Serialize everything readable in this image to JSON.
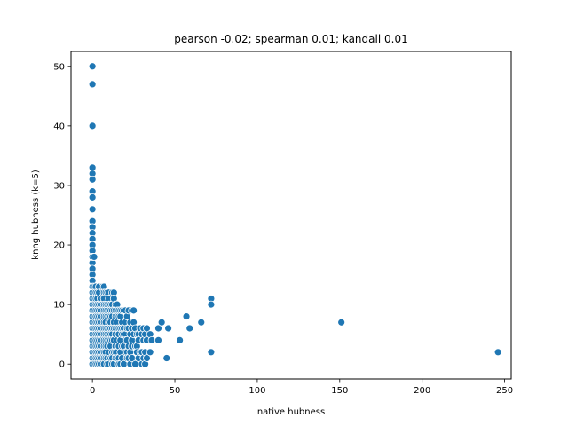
{
  "chart_data": {
    "type": "scatter",
    "title": "pearson -0.02; spearman 0.01; kandall 0.01",
    "xlabel": "native hubness",
    "ylabel": "knng hubness (k=5)",
    "xlim": [
      -13,
      254
    ],
    "ylim": [
      -2.5,
      52.5
    ],
    "xticks": [
      0,
      50,
      100,
      150,
      200,
      250
    ],
    "yticks": [
      0,
      10,
      20,
      30,
      40,
      50
    ],
    "grid": false,
    "legend": "none",
    "marker_color": "#1f77b4",
    "marker_edge_color": "#ffffff",
    "series": [
      {
        "x": [
          0,
          0,
          0,
          0,
          0,
          0,
          0,
          0,
          0,
          0,
          0,
          0,
          0,
          0,
          0,
          0,
          0,
          0,
          0,
          0,
          0,
          0,
          0,
          0,
          0,
          0,
          0,
          0,
          0,
          0,
          0,
          0,
          0,
          0,
          0,
          0,
          0,
          0,
          0,
          0,
          0,
          0,
          0,
          0,
          0,
          0,
          0,
          0,
          0,
          0,
          0,
          0,
          1,
          1,
          1,
          1,
          1,
          1,
          1,
          1,
          1,
          1,
          1,
          1,
          1,
          1,
          1,
          1,
          1,
          1,
          2,
          2,
          2,
          2,
          2,
          2,
          2,
          2,
          2,
          2,
          2,
          2,
          2,
          2,
          2,
          3,
          3,
          3,
          3,
          3,
          3,
          3,
          3,
          3,
          3,
          3,
          3,
          3,
          4,
          4,
          4,
          4,
          4,
          4,
          4,
          4,
          4,
          4,
          4,
          4,
          4,
          5,
          5,
          5,
          5,
          5,
          5,
          5,
          5,
          5,
          5,
          5,
          5,
          6,
          6,
          6,
          6,
          6,
          6,
          6,
          6,
          6,
          6,
          6,
          6,
          6,
          7,
          7,
          7,
          7,
          7,
          7,
          7,
          7,
          7,
          7,
          7,
          7,
          7,
          7,
          8,
          8,
          8,
          8,
          8,
          8,
          8,
          8,
          8,
          8,
          8,
          9,
          9,
          9,
          9,
          9,
          9,
          9,
          9,
          9,
          9,
          10,
          10,
          10,
          10,
          10,
          10,
          10,
          10,
          10,
          10,
          10,
          11,
          11,
          11,
          11,
          11,
          11,
          11,
          11,
          11,
          12,
          12,
          12,
          12,
          12,
          12,
          12,
          12,
          12,
          12,
          13,
          13,
          13,
          13,
          13,
          13,
          13,
          13,
          14,
          14,
          14,
          14,
          14,
          14,
          14,
          14,
          15,
          15,
          15,
          15,
          15,
          15,
          15,
          15,
          16,
          16,
          16,
          16,
          16,
          16,
          16,
          17,
          17,
          17,
          17,
          17,
          17,
          18,
          18,
          18,
          18,
          18,
          18,
          19,
          19,
          19,
          19,
          19,
          20,
          20,
          20,
          20,
          20,
          21,
          21,
          21,
          21,
          21,
          22,
          22,
          22,
          22,
          23,
          23,
          23,
          23,
          24,
          24,
          24,
          24,
          24,
          25,
          25,
          25,
          26,
          26,
          26,
          27,
          27,
          27,
          28,
          28,
          28,
          29,
          29,
          30,
          30,
          30,
          31,
          31,
          31,
          32,
          32,
          32,
          33,
          33,
          33,
          35,
          35,
          36,
          40,
          40,
          42,
          45,
          46,
          53,
          57,
          59,
          66,
          72,
          72,
          72,
          151,
          246
        ],
        "y": [
          50,
          47,
          40,
          33,
          32,
          31,
          29,
          28,
          26,
          24,
          23,
          22,
          21,
          20,
          19,
          18,
          17,
          16,
          15,
          14,
          13,
          12,
          11,
          10,
          9,
          8,
          7,
          6,
          5,
          4,
          3,
          2,
          1,
          0,
          0,
          0,
          0,
          0,
          0,
          0,
          0,
          0,
          0,
          0,
          0,
          0,
          0,
          0,
          0,
          0,
          0,
          18,
          18,
          13,
          12,
          11,
          10,
          9,
          8,
          7,
          6,
          5,
          4,
          3,
          2,
          1,
          0,
          9,
          6,
          3,
          13,
          12,
          10,
          9,
          8,
          7,
          6,
          5,
          4,
          3,
          2,
          1,
          0,
          11,
          8,
          12,
          11,
          10,
          9,
          8,
          7,
          6,
          5,
          4,
          3,
          2,
          1,
          0,
          13,
          12,
          10,
          9,
          8,
          7,
          6,
          5,
          4,
          3,
          2,
          1,
          0,
          11,
          10,
          9,
          8,
          7,
          6,
          5,
          4,
          3,
          2,
          1,
          0,
          13,
          12,
          10,
          9,
          8,
          7,
          6,
          5,
          4,
          3,
          2,
          1,
          0,
          13,
          12,
          11,
          10,
          9,
          8,
          7,
          6,
          5,
          4,
          3,
          2,
          1,
          0,
          12,
          10,
          9,
          8,
          7,
          6,
          5,
          4,
          3,
          2,
          1,
          12,
          10,
          9,
          8,
          6,
          5,
          4,
          3,
          1,
          0,
          12,
          11,
          10,
          9,
          8,
          7,
          6,
          5,
          4,
          2,
          0,
          10,
          9,
          8,
          7,
          6,
          5,
          4,
          3,
          1,
          12,
          10,
          9,
          8,
          6,
          5,
          4,
          2,
          1,
          0,
          12,
          11,
          9,
          7,
          6,
          4,
          2,
          0,
          10,
          9,
          8,
          6,
          5,
          3,
          2,
          1,
          10,
          9,
          8,
          7,
          6,
          4,
          2,
          1,
          9,
          8,
          6,
          5,
          3,
          1,
          0,
          9,
          8,
          6,
          4,
          2,
          0,
          9,
          7,
          6,
          5,
          3,
          1,
          9,
          6,
          5,
          3,
          0,
          9,
          7,
          5,
          4,
          2,
          8,
          6,
          4,
          2,
          1,
          9,
          6,
          3,
          1,
          7,
          5,
          2,
          0,
          9,
          6,
          4,
          3,
          1,
          9,
          7,
          5,
          6,
          3,
          0,
          5,
          3,
          2,
          5,
          4,
          1,
          6,
          2,
          5,
          2,
          0,
          6,
          4,
          1,
          5,
          2,
          0,
          6,
          4,
          1,
          5,
          2,
          4,
          6,
          4,
          7,
          1,
          6,
          4,
          8,
          6,
          7,
          11,
          10,
          2,
          7,
          2
        ]
      }
    ]
  }
}
